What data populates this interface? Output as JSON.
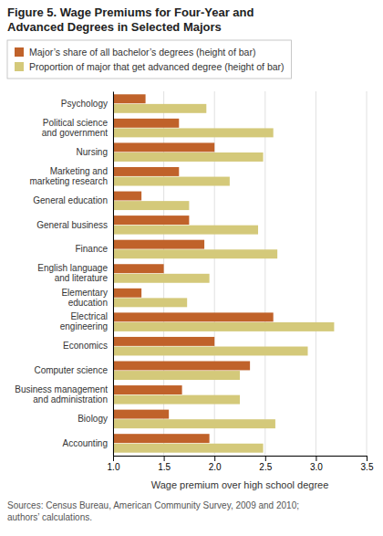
{
  "chart_data": {
    "type": "bar",
    "orientation": "horizontal",
    "title": "Figure 5. Wage Premiums for Four-Year and\nAdvanced Degrees in Selected Majors",
    "categories": [
      "Psychology",
      "Political science\nand government",
      "Nursing",
      "Marketing and\nmarketing research",
      "General education",
      "General business",
      "Finance",
      "English language\nand literature",
      "Elementary\neducation",
      "Electrical\nengineering",
      "Economics",
      "Computer science",
      "Business management\nand administration",
      "Biology",
      "Accounting"
    ],
    "series": [
      {
        "name": "Major’s share of all bachelor’s degrees (height of bar)",
        "color": "#C0622A",
        "values": [
          1.32,
          1.65,
          2.0,
          1.65,
          1.28,
          1.75,
          1.9,
          1.5,
          1.28,
          2.58,
          2.0,
          2.35,
          1.68,
          1.55,
          1.95
        ]
      },
      {
        "name": "Proportion of major that get advanced degree (height of bar)",
        "color": "#D4C97A",
        "values": [
          1.92,
          2.58,
          2.48,
          2.15,
          1.75,
          2.43,
          2.62,
          1.95,
          1.73,
          3.18,
          2.92,
          2.25,
          2.25,
          2.6,
          2.48
        ]
      }
    ],
    "x_label": "Wage premium over high school degree",
    "xlim": [
      1.0,
      3.5
    ],
    "xticks": [
      {
        "value": 1.0,
        "label": "1.0"
      },
      {
        "value": 1.5,
        "label": "1.5"
      },
      {
        "value": 2.0,
        "label": "2.0"
      },
      {
        "value": 2.5,
        "label": "2.5"
      },
      {
        "value": 3.0,
        "label": "3.0"
      },
      {
        "value": 3.5,
        "label": "3.5"
      }
    ],
    "grid": true,
    "legend": "top-left",
    "annotations": [
      "Sources: Census Bureau, American Community Survey, 2009 and 2010;\nauthors’ calculations."
    ]
  }
}
